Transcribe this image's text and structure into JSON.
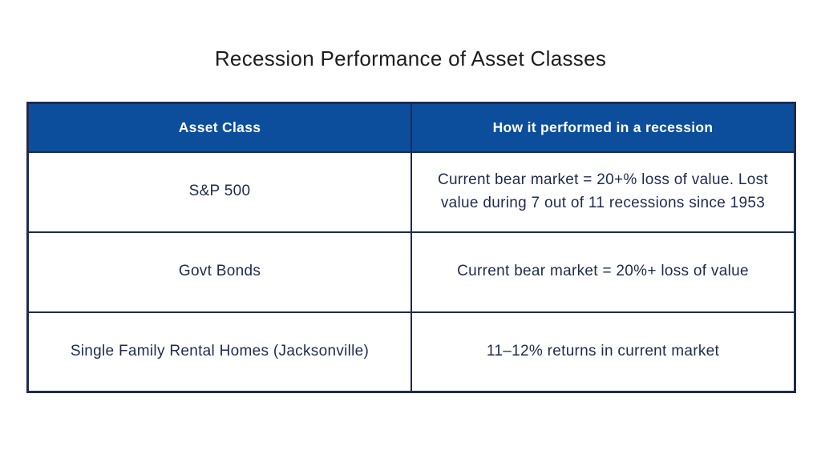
{
  "title": "Recession Performance of Asset Classes",
  "chart_data": {
    "type": "table",
    "title": "Recession Performance of Asset Classes",
    "columns": [
      "Asset Class",
      "How it performed in a recession"
    ],
    "rows": [
      [
        "S&P 500",
        "Current bear market = 20+% loss of value. Lost value during 7 out of 11 recessions since 1953"
      ],
      [
        "Govt Bonds",
        "Current bear market = 20%+ loss of value"
      ],
      [
        "Single Family Rental Homes (Jacksonville)",
        "11–12% returns in current market"
      ]
    ]
  },
  "colors": {
    "background": "#ffffff",
    "title_text": "#1d1d1d",
    "header_bg": "#0d4e9c",
    "header_text": "#ffffff",
    "body_text": "#1e2b4d",
    "border": "#1e2b4d"
  }
}
